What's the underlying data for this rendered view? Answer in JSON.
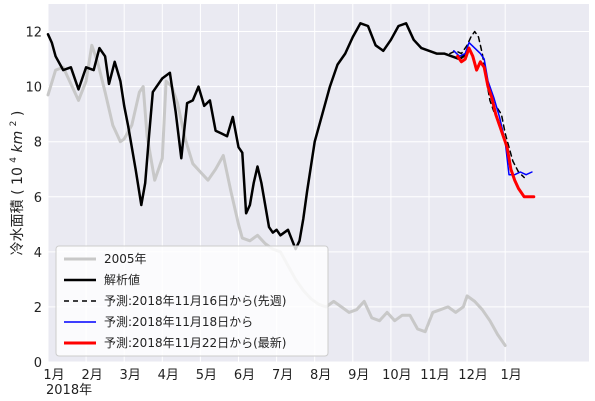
{
  "chart_data": {
    "type": "line",
    "title": "",
    "ylabel": "冷水面積 (10⁴km²)",
    "ylabel_parts": {
      "main": "冷水面積",
      "paren_open": "(",
      "base": "10",
      "exp1": "4",
      "unit": "km",
      "exp2": "2",
      "paren_close": ")"
    },
    "xlabel": "",
    "year_label": "2018年",
    "xlim": [
      0,
      14.2
    ],
    "ylim": [
      0,
      13
    ],
    "yticks": [
      0,
      2,
      4,
      6,
      8,
      10,
      12
    ],
    "xticks": [
      {
        "x": 0,
        "label": "1月"
      },
      {
        "x": 1,
        "label": "2月"
      },
      {
        "x": 2,
        "label": "3月"
      },
      {
        "x": 3,
        "label": "4月"
      },
      {
        "x": 4,
        "label": "5月"
      },
      {
        "x": 5,
        "label": "6月"
      },
      {
        "x": 6,
        "label": "7月"
      },
      {
        "x": 7,
        "label": "8月"
      },
      {
        "x": 8,
        "label": "9月"
      },
      {
        "x": 9,
        "label": "10月"
      },
      {
        "x": 10,
        "label": "11月"
      },
      {
        "x": 11,
        "label": "12月"
      },
      {
        "x": 12,
        "label": "1月"
      }
    ],
    "grid": true,
    "legend_position": "lower-left",
    "series": [
      {
        "name": "2005年",
        "color": "#c8c8c8",
        "width": 3,
        "dash": "",
        "x": [
          0,
          0.2,
          0.4,
          0.6,
          0.8,
          1.0,
          1.15,
          1.3,
          1.5,
          1.7,
          1.9,
          2.0,
          2.2,
          2.4,
          2.5,
          2.6,
          2.8,
          3.0,
          3.1,
          3.25,
          3.4,
          3.6,
          3.8,
          4.0,
          4.2,
          4.4,
          4.6,
          4.8,
          5.0,
          5.1,
          5.3,
          5.5,
          5.7,
          5.9,
          6.1,
          6.3,
          6.5,
          6.7,
          6.9,
          7.1,
          7.3,
          7.5,
          7.7,
          7.9,
          8.1,
          8.3,
          8.5,
          8.7,
          8.9,
          9.1,
          9.3,
          9.5,
          9.7,
          9.9,
          10.1,
          10.3,
          10.5,
          10.7,
          10.9,
          11.0,
          11.2,
          11.4,
          11.6,
          11.8,
          12.0
        ],
        "y": [
          9.7,
          10.6,
          10.7,
          10.1,
          9.5,
          10.2,
          11.5,
          10.9,
          9.8,
          8.6,
          8.0,
          8.1,
          8.6,
          9.8,
          10.0,
          8.2,
          6.6,
          7.4,
          10.2,
          10.0,
          9.4,
          8.1,
          7.2,
          6.9,
          6.6,
          7.0,
          7.5,
          6.2,
          5.0,
          4.5,
          4.4,
          4.6,
          4.3,
          4.1,
          4.0,
          3.5,
          3.0,
          2.6,
          2.3,
          2.1,
          2.0,
          2.2,
          2.0,
          1.8,
          1.9,
          2.2,
          1.6,
          1.5,
          1.8,
          1.5,
          1.7,
          1.7,
          1.2,
          1.1,
          1.8,
          1.9,
          2.0,
          1.8,
          2.0,
          2.4,
          2.2,
          1.9,
          1.5,
          1.0,
          0.6
        ]
      },
      {
        "name": "解析値",
        "color": "#000000",
        "width": 2.5,
        "dash": "",
        "x": [
          0,
          0.1,
          0.2,
          0.4,
          0.6,
          0.8,
          0.9,
          1.0,
          1.2,
          1.35,
          1.5,
          1.6,
          1.75,
          1.9,
          2.0,
          2.1,
          2.3,
          2.45,
          2.55,
          2.65,
          2.75,
          2.85,
          3.0,
          3.2,
          3.35,
          3.5,
          3.65,
          3.8,
          3.95,
          4.1,
          4.25,
          4.4,
          4.55,
          4.7,
          4.85,
          5.0,
          5.1,
          5.2,
          5.3,
          5.4,
          5.5,
          5.6,
          5.7,
          5.8,
          5.9,
          6.0,
          6.1,
          6.3,
          6.5,
          6.6,
          6.7,
          6.8,
          7.0,
          7.2,
          7.4,
          7.6,
          7.8,
          8.0,
          8.2,
          8.4,
          8.6,
          8.8,
          9.0,
          9.2,
          9.4,
          9.6,
          9.8,
          10.0,
          10.2,
          10.4,
          10.6,
          10.8,
          11.0
        ],
        "y": [
          11.9,
          11.6,
          11.1,
          10.6,
          10.7,
          9.9,
          10.3,
          10.7,
          10.6,
          11.4,
          11.1,
          10.1,
          10.9,
          10.2,
          9.3,
          8.6,
          7.0,
          5.7,
          6.5,
          8.2,
          9.8,
          10.0,
          10.3,
          10.5,
          9.1,
          7.4,
          9.4,
          9.5,
          10.0,
          9.3,
          9.5,
          8.4,
          8.3,
          8.2,
          8.9,
          7.8,
          7.6,
          5.4,
          5.7,
          6.5,
          7.1,
          6.5,
          5.7,
          4.9,
          4.7,
          4.8,
          4.6,
          4.8,
          4.1,
          4.4,
          5.2,
          6.2,
          8.0,
          9.0,
          10.0,
          10.8,
          11.2,
          11.8,
          12.3,
          12.2,
          11.5,
          11.3,
          11.7,
          12.2,
          12.3,
          11.7,
          11.4,
          11.3,
          11.2,
          11.2,
          11.1,
          11.0,
          11.2
        ]
      },
      {
        "name": "予測:2018年11月16日から(先週)",
        "color": "#000000",
        "width": 1.5,
        "dash": "5,4",
        "x": [
          10.55,
          10.7,
          10.85,
          11.0,
          11.1,
          11.2,
          11.3,
          11.4,
          11.5,
          11.6,
          11.7,
          11.8,
          11.9,
          12.0,
          12.1,
          12.2,
          12.35,
          12.5
        ],
        "y": [
          11.2,
          11.3,
          11.2,
          11.5,
          11.8,
          12.0,
          11.8,
          11.2,
          10.3,
          9.5,
          9.1,
          9.2,
          9.0,
          8.3,
          7.8,
          7.3,
          6.9,
          6.7
        ]
      },
      {
        "name": "予測:2018年11月18日から",
        "color": "#0000ff",
        "width": 1.5,
        "dash": "",
        "x": [
          10.65,
          10.8,
          10.95,
          11.05,
          11.2,
          11.35,
          11.45,
          11.55,
          11.7,
          11.85,
          12.0,
          12.1,
          12.25,
          12.4,
          12.55,
          12.7
        ],
        "y": [
          11.3,
          11.1,
          11.2,
          11.6,
          11.4,
          11.2,
          11.0,
          10.2,
          9.6,
          8.9,
          8.0,
          6.8,
          6.8,
          6.9,
          6.8,
          6.9
        ]
      },
      {
        "name": "予測:2018年11月22日から(最新)",
        "color": "#ff0000",
        "width": 3,
        "dash": "",
        "x": [
          10.75,
          10.85,
          10.95,
          11.05,
          11.15,
          11.25,
          11.35,
          11.45,
          11.55,
          11.65,
          11.75,
          11.85,
          11.95,
          12.05,
          12.15,
          12.25,
          12.35,
          12.5,
          12.65,
          12.75
        ],
        "y": [
          11.1,
          10.9,
          11.0,
          11.4,
          11.1,
          10.6,
          10.9,
          10.7,
          10.0,
          9.6,
          9.0,
          8.6,
          8.2,
          7.8,
          7.0,
          6.6,
          6.3,
          6.0,
          6.0,
          6.0
        ]
      }
    ]
  }
}
